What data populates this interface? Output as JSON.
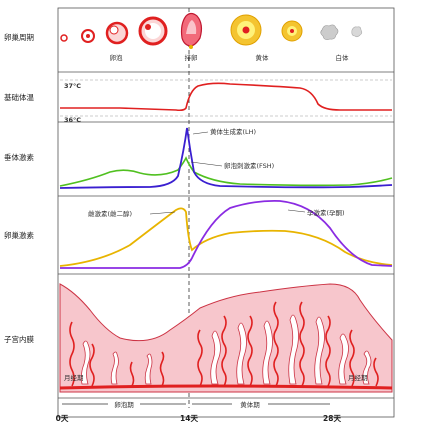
{
  "row_labels": {
    "ovary": "卵巢周期",
    "bbt": "基础体温",
    "pituitary": "垂体激素",
    "ovarian": "卵巢激素",
    "endometrium": "子宫内膜"
  },
  "ovary_stages": {
    "follicle": "卵泡",
    "ovulation": "排卵",
    "corpus_luteum": "黄体",
    "corpus_albicans": "白体"
  },
  "temperature": {
    "high": "37°C",
    "low": "36°C"
  },
  "hormone_labels": {
    "lh": "黄体生成素(LH)",
    "fsh": "卵泡刺激素(FSH)",
    "estrogen": "雌激素(雌二醇)",
    "progesterone": "孕激素(孕酮)"
  },
  "phase_labels": {
    "menses_start": "月经期",
    "menses_end": "月经期",
    "follicular": "卵泡期",
    "luteal": "黄体期"
  },
  "day_ticks": {
    "d0": "0天",
    "d14": "14天",
    "d28": "28天"
  },
  "colors": {
    "frame": "#555555",
    "red": "#e02020",
    "lh": "#3a1fd0",
    "fsh": "#50c020",
    "estrogen": "#e8b400",
    "progesterone": "#8a2be2",
    "tissue_fill": "#f7c6cc",
    "tissue_edge": "#cc3344",
    "yellow": "#f4c430",
    "grey": "#bbbbbb"
  }
}
